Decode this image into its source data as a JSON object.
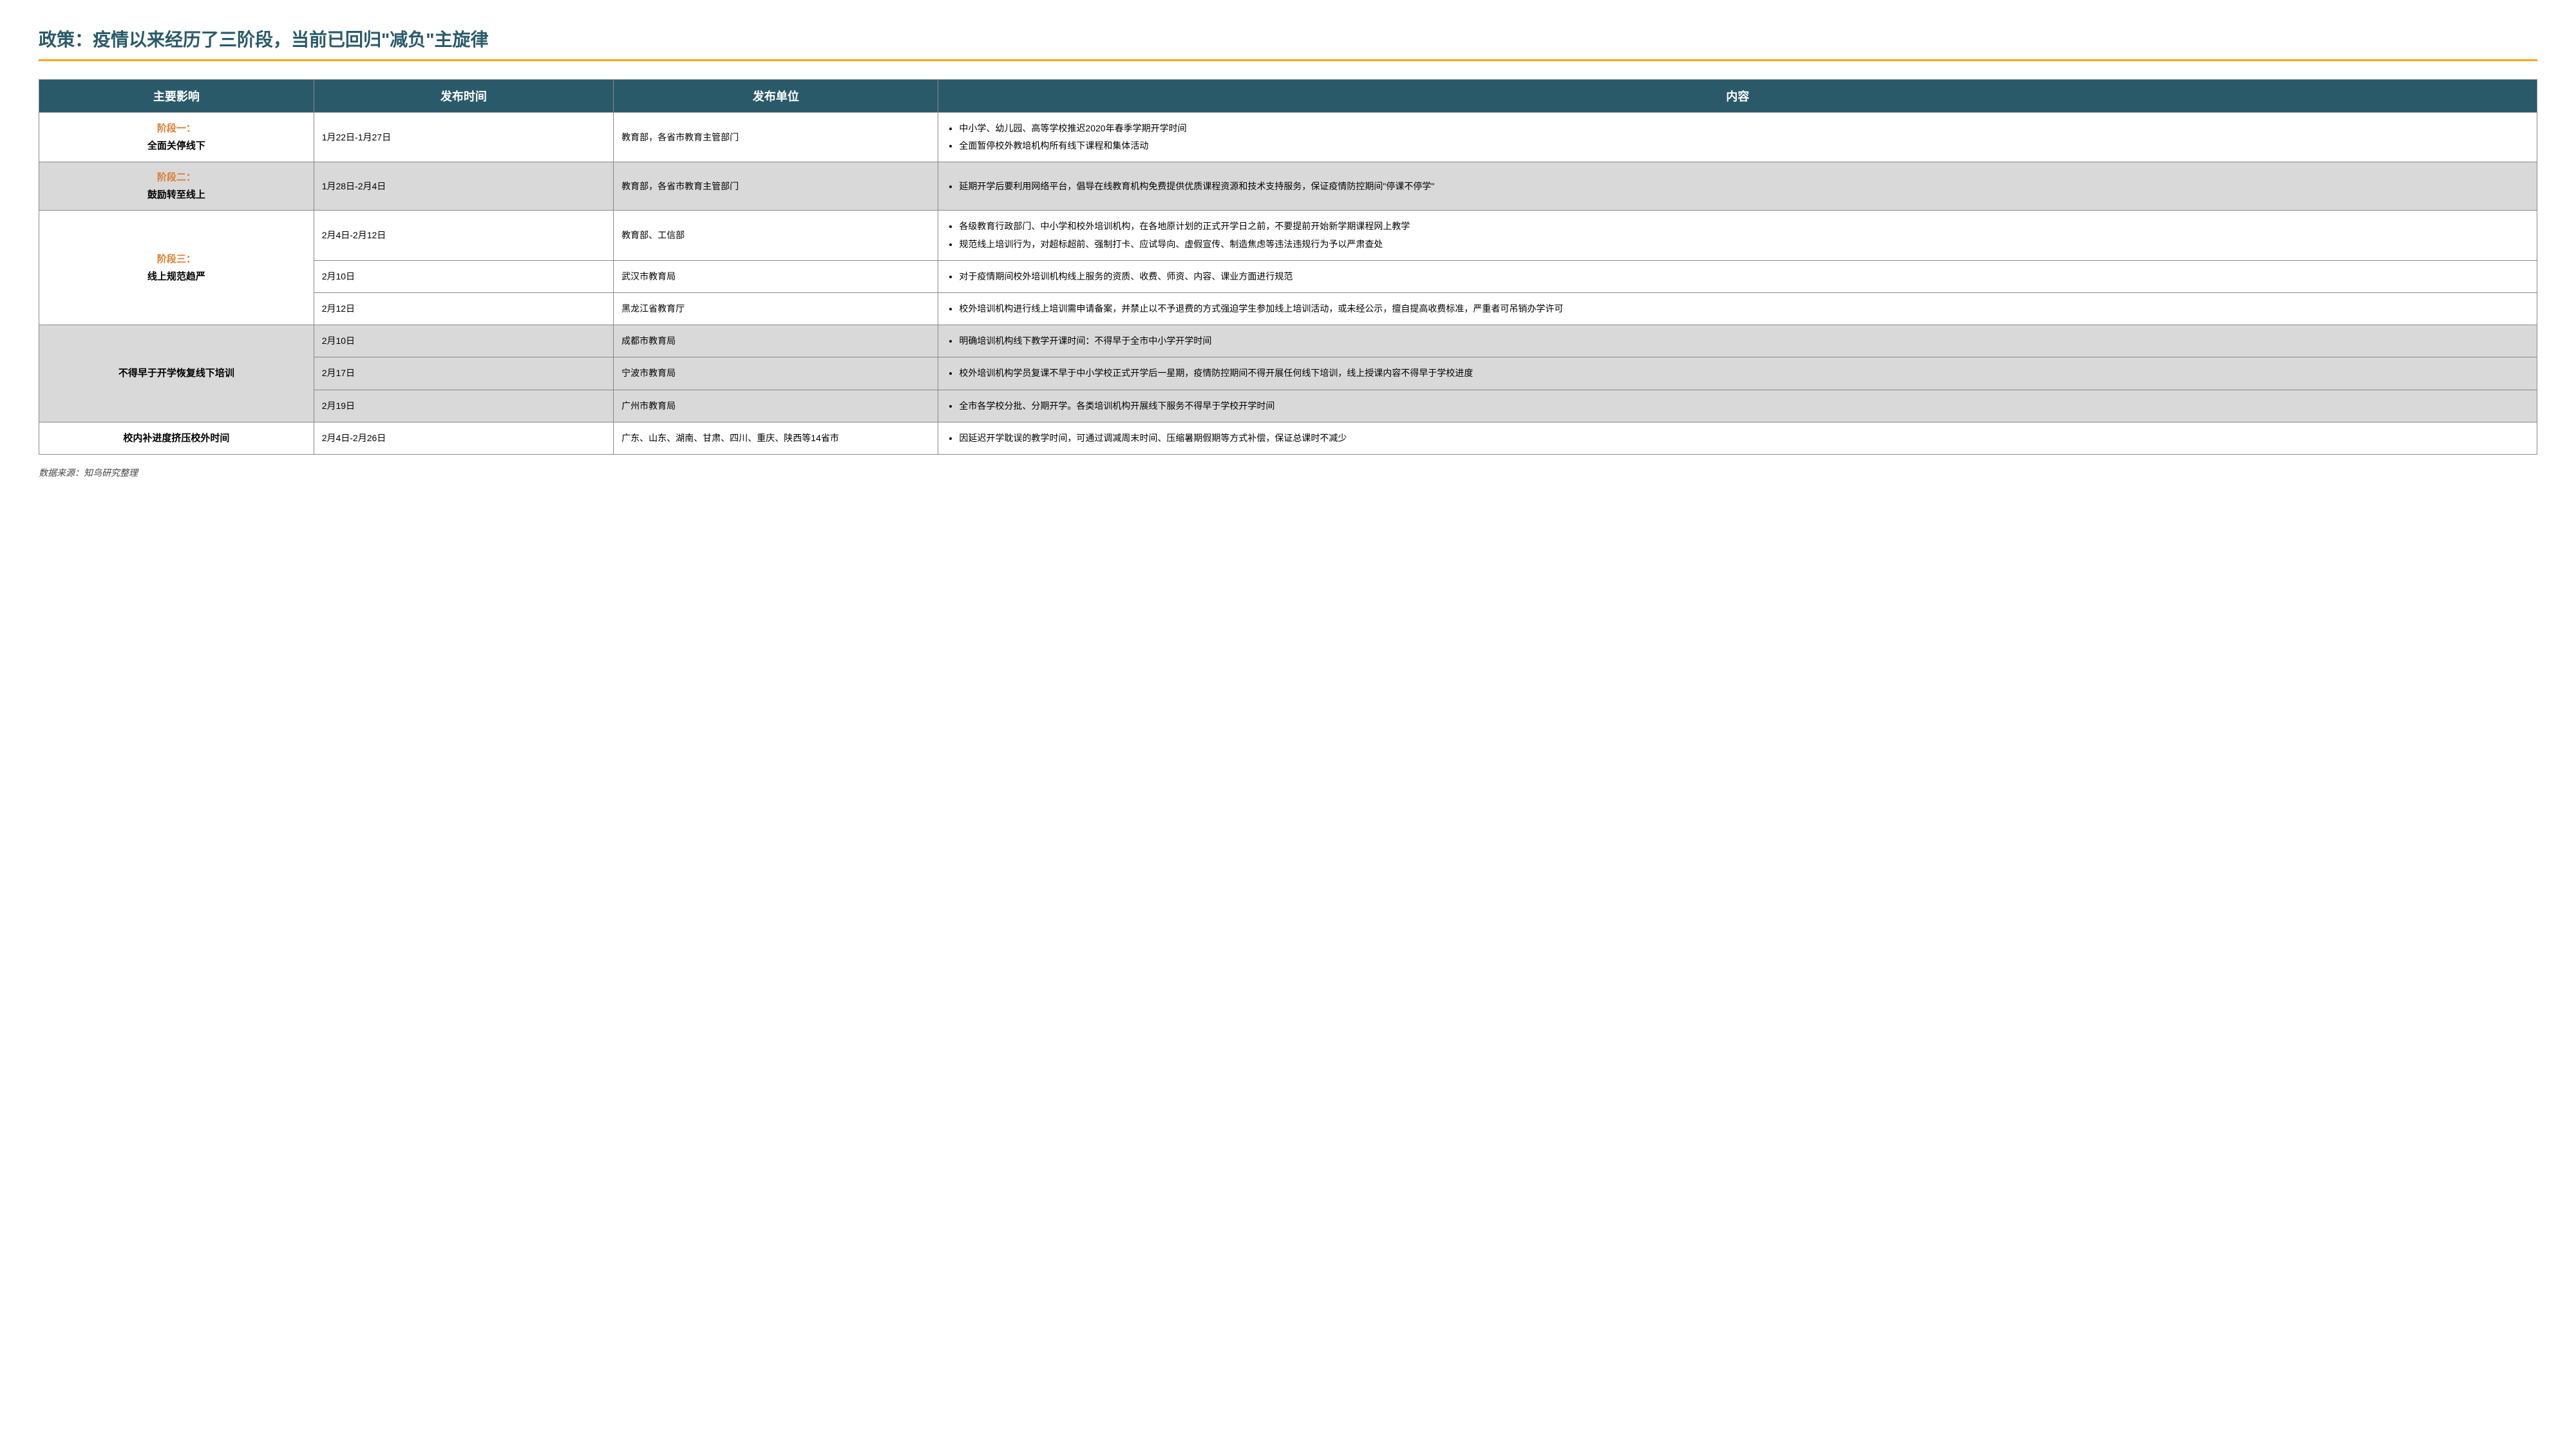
{
  "title": "政策：疫情以来经历了三阶段，当前已回归\"减负\"主旋律",
  "columns": {
    "impact": "主要影响",
    "date": "发布时间",
    "unit": "发布单位",
    "content": "内容"
  },
  "colors": {
    "header_bg": "#2a5a6a",
    "header_text": "#ffffff",
    "accent": "#f5a623",
    "phase_label": "#d97b2e",
    "border": "#888888",
    "row_alt": "#d9d9d9"
  },
  "groups": [
    {
      "impact_label": "阶段一：",
      "impact_sub": "全面关停线下",
      "shade": "white",
      "rows": [
        {
          "date": "1月22日-1月27日",
          "unit": "教育部，各省市教育主管部门",
          "bullets": [
            "中小学、幼儿园、高等学校推迟2020年春季学期开学时间",
            "全面暂停校外教培机构所有线下课程和集体活动"
          ]
        }
      ]
    },
    {
      "impact_label": "阶段二：",
      "impact_sub": "鼓励转至线上",
      "shade": "gray",
      "rows": [
        {
          "date": "1月28日-2月4日",
          "unit": "教育部，各省市教育主管部门",
          "bullets": [
            "延期开学后要利用网络平台，倡导在线教育机构免费提供优质课程资源和技术支持服务，保证疫情防控期间\"停课不停学\""
          ]
        }
      ]
    },
    {
      "impact_label": "阶段三：",
      "impact_sub": "线上规范趋严",
      "shade": "white",
      "rows": [
        {
          "date": "2月4日-2月12日",
          "unit": "教育部、工信部",
          "bullets": [
            "各级教育行政部门、中小学和校外培训机构，在各地原计划的正式开学日之前，不要提前开始新学期课程网上教学",
            "规范线上培训行为，对超标超前、强制打卡、应试导向、虚假宣传、制造焦虑等违法违规行为予以严肃查处"
          ]
        },
        {
          "date": "2月10日",
          "unit": "武汉市教育局",
          "bullets": [
            "对于疫情期间校外培训机构线上服务的资质、收费、师资、内容、课业方面进行规范"
          ]
        },
        {
          "date": "2月12日",
          "unit": "黑龙江省教育厅",
          "bullets": [
            "校外培训机构进行线上培训需申请备案，并禁止以不予退费的方式强迫学生参加线上培训活动，或未经公示，擅自提高收费标准，严重者可吊销办学许可"
          ]
        }
      ]
    },
    {
      "impact_label": "",
      "impact_sub": "不得早于开学恢复线下培训",
      "shade": "gray",
      "rows": [
        {
          "date": "2月10日",
          "unit": "成都市教育局",
          "bullets": [
            "明确培训机构线下教学开课时间：不得早于全市中小学开学时间"
          ]
        },
        {
          "date": "2月17日",
          "unit": "宁波市教育局",
          "bullets": [
            "校外培训机构学员复课不早于中小学校正式开学后一星期，疫情防控期间不得开展任何线下培训，线上授课内容不得早于学校进度"
          ]
        },
        {
          "date": "2月19日",
          "unit": "广州市教育局",
          "bullets": [
            "全市各学校分批、分期开学。各类培训机构开展线下服务不得早于学校开学时间"
          ]
        }
      ]
    },
    {
      "impact_label": "",
      "impact_sub": "校内补进度挤压校外时间",
      "shade": "white",
      "rows": [
        {
          "date": "2月4日-2月26日",
          "unit": "广东、山东、湖南、甘肃、四川、重庆、陕西等14省市",
          "bullets": [
            "因延迟开学耽误的教学时间，可通过调减周末时间、压缩暑期假期等方式补偿，保证总课时不减少"
          ]
        }
      ]
    }
  ],
  "source": "数据来源：知鸟研究整理"
}
